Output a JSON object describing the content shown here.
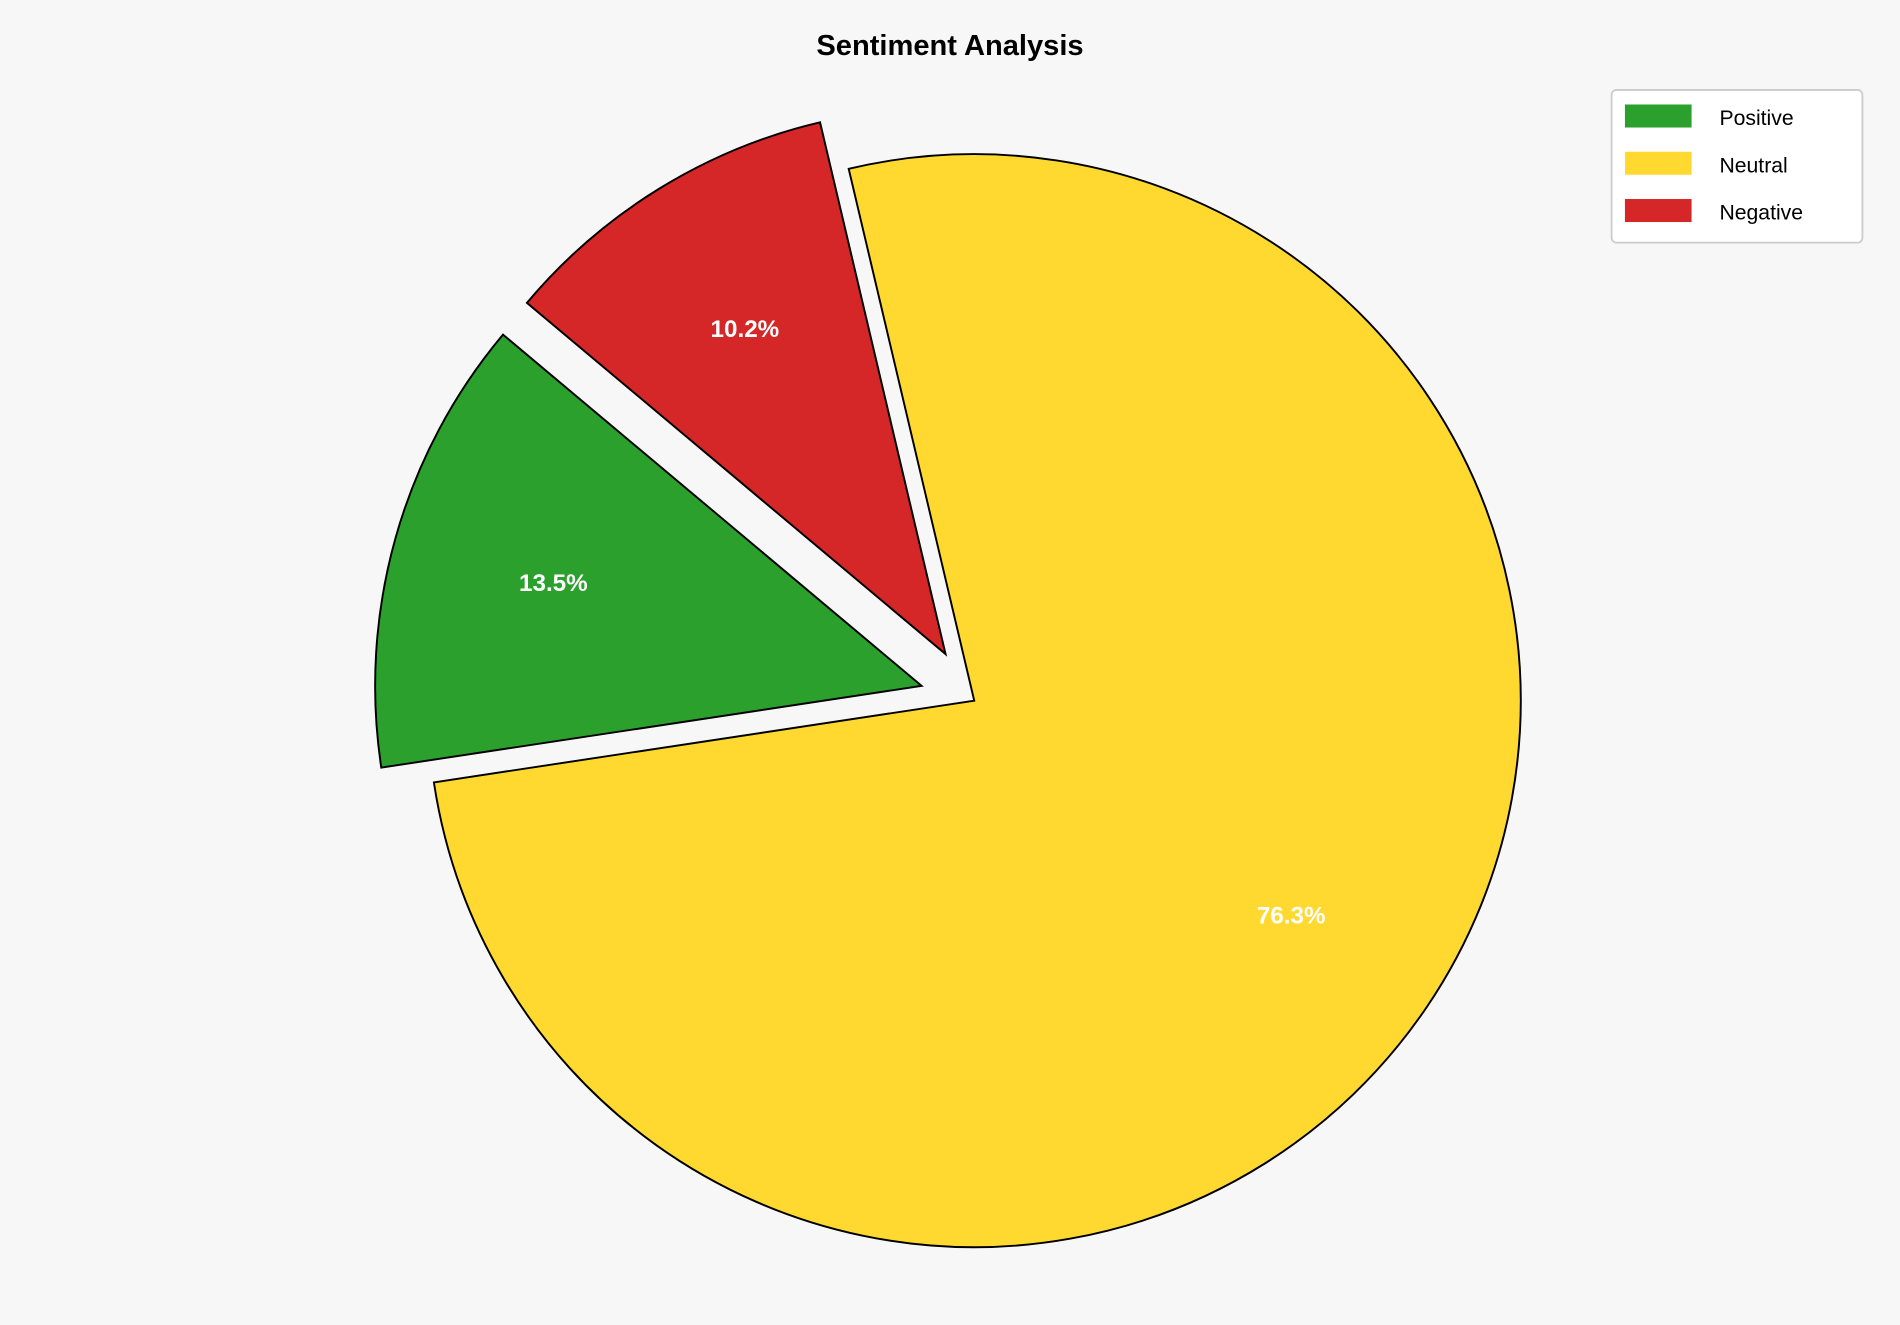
{
  "chart_data": {
    "type": "pie",
    "title": "Sentiment Analysis",
    "categories": [
      "Positive",
      "Neutral",
      "Negative"
    ],
    "values": [
      13.5,
      76.3,
      10.2
    ],
    "labels": [
      "13.5%",
      "76.3%",
      "10.2%"
    ],
    "colors": [
      "#2ca02c",
      "#ffd92f",
      "#d62728"
    ],
    "explode": [
      0.1,
      0,
      0.1
    ],
    "start_angle": 140,
    "direction": "counterclockwise",
    "legend_position": "top-right",
    "background": "#f7f7f7"
  }
}
